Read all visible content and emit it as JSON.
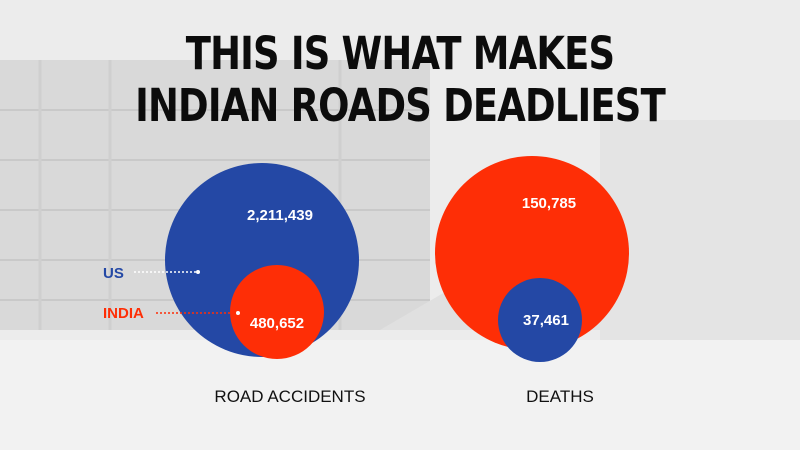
{
  "title_lines": [
    "THIS IS WHAT MAKES",
    "INDIAN ROADS DEADLIEST"
  ],
  "colors": {
    "us": "#2448a5",
    "india": "#fe2e06",
    "text": "#0c0c0c",
    "background": "#eeeeee"
  },
  "chart_data": {
    "type": "bubble",
    "title": "THIS IS WHAT MAKES INDIAN ROADS DEADLIEST",
    "categories": [
      "ROAD ACCIDENTS",
      "DEATHS"
    ],
    "series": [
      {
        "name": "US",
        "color": "#2448a5",
        "values": [
          2211439,
          37461
        ],
        "labels": [
          "2,211,439",
          "37,461"
        ]
      },
      {
        "name": "INDIA",
        "color": "#fe2e06",
        "values": [
          480652,
          150785
        ],
        "labels": [
          "480,652",
          "150,785"
        ]
      }
    ],
    "legend": {
      "placement": "left",
      "entries": [
        "US",
        "INDIA"
      ]
    }
  }
}
